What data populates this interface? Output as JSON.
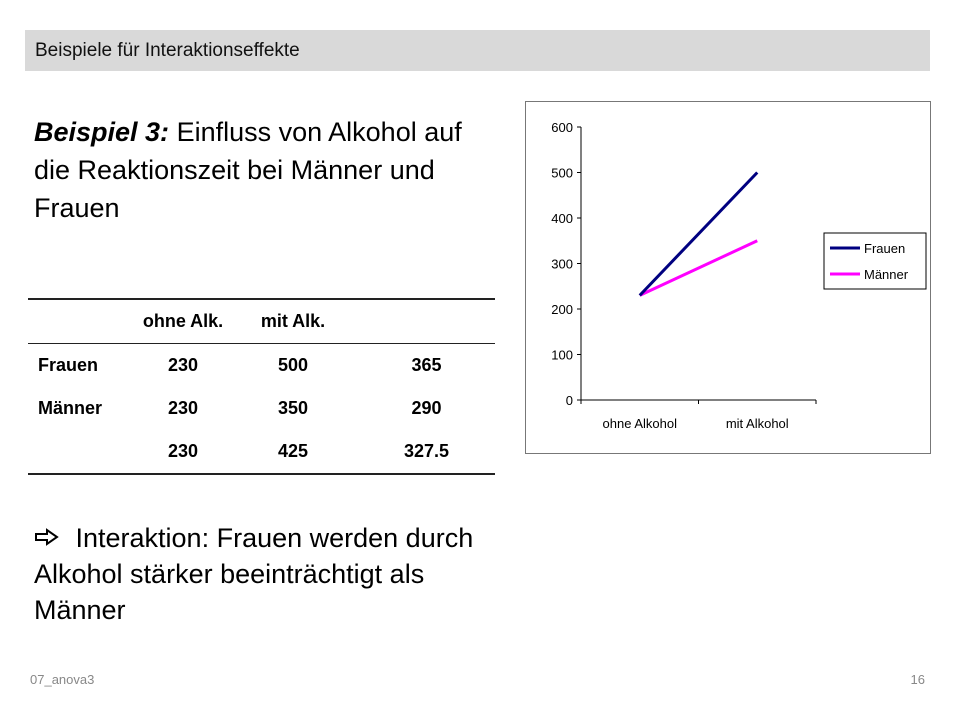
{
  "header": {
    "title": "Beispiele für Interaktionseffekte"
  },
  "content": {
    "title_lead": "Beispiel 3:",
    "title_rest": " Einfluss von Alkohol auf die Reaktionszeit bei Männer und Frauen",
    "conclusion": " Interaktion: Frauen werden durch Alkohol stärker beeinträchtigt als Männer"
  },
  "table": {
    "headers": [
      "",
      "ohne Alk.",
      "mit Alk.",
      ""
    ],
    "rows": [
      [
        "Frauen",
        "230",
        "500",
        "365"
      ],
      [
        "Männer",
        "230",
        "350",
        "290"
      ],
      [
        "",
        "230",
        "425",
        "327.5"
      ]
    ]
  },
  "footer": {
    "left": "07_anova3",
    "page": "16"
  },
  "chart_data": {
    "type": "line",
    "categories": [
      "ohne Alkohol",
      "mit Alkohol"
    ],
    "series": [
      {
        "name": "Frauen",
        "values": [
          230,
          500
        ],
        "color": "#000080"
      },
      {
        "name": "Männer",
        "values": [
          230,
          350
        ],
        "color": "#ff00ff"
      }
    ],
    "ylim": [
      0,
      600
    ],
    "yticks": [
      0,
      100,
      200,
      300,
      400,
      500,
      600
    ],
    "legend": "right",
    "grid": false
  }
}
